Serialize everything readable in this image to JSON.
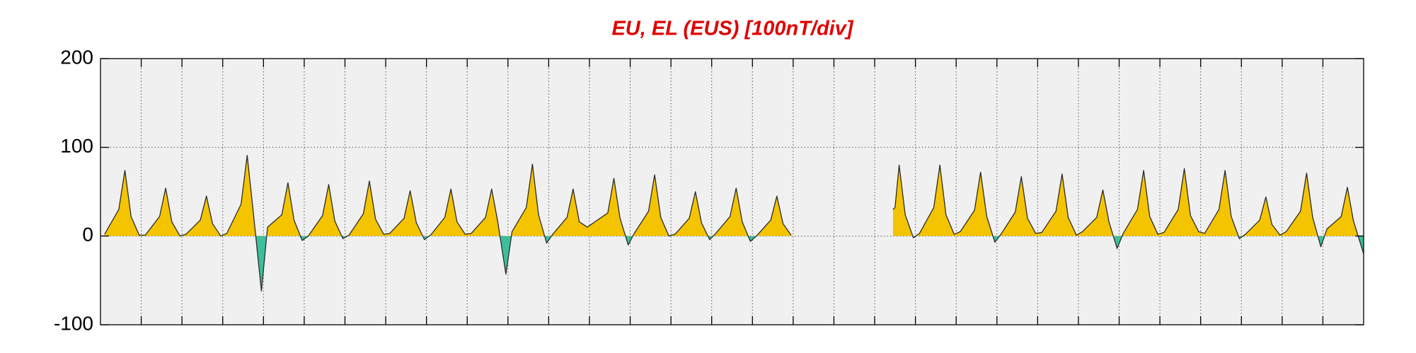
{
  "chart_data": {
    "type": "area",
    "title": "EU, EL (EUS)  [100nT/div]",
    "xlim": [
      0,
      31
    ],
    "xticks": [
      1,
      2,
      3,
      4,
      5,
      6,
      7,
      8,
      9,
      10,
      11,
      12,
      13,
      14,
      15,
      16,
      17,
      18,
      19,
      20,
      21,
      22,
      23,
      24,
      25,
      26,
      27,
      28,
      29,
      30
    ],
    "ylim": [
      -100,
      200
    ],
    "yticks": [
      -100,
      0,
      100,
      200
    ],
    "grid": true,
    "x": [
      0.1,
      0.45,
      0.6,
      0.75,
      0.95,
      1.1,
      1.45,
      1.6,
      1.75,
      1.95,
      2.1,
      2.45,
      2.6,
      2.75,
      2.95,
      3.1,
      3.45,
      3.6,
      3.75,
      3.95,
      4.1,
      4.45,
      4.6,
      4.75,
      4.95,
      5.1,
      5.45,
      5.6,
      5.75,
      5.95,
      6.1,
      6.45,
      6.6,
      6.75,
      6.95,
      7.1,
      7.45,
      7.6,
      7.75,
      7.95,
      8.1,
      8.45,
      8.6,
      8.75,
      8.95,
      9.1,
      9.45,
      9.6,
      9.75,
      9.95,
      10.1,
      10.45,
      10.6,
      10.75,
      10.95,
      11.1,
      11.45,
      11.6,
      11.75,
      11.95,
      12.1,
      12.45,
      12.6,
      12.75,
      12.95,
      13.1,
      13.45,
      13.6,
      13.75,
      13.95,
      14.1,
      14.45,
      14.6,
      14.75,
      14.95,
      15.1,
      15.45,
      15.6,
      15.75,
      15.95,
      16.1,
      16.45,
      16.6,
      16.75,
      16.95,
      17.5,
      19.45,
      19.5,
      19.6,
      19.75,
      19.95,
      20.1,
      20.45,
      20.6,
      20.75,
      20.95,
      21.1,
      21.45,
      21.6,
      21.75,
      21.95,
      22.1,
      22.45,
      22.6,
      22.75,
      22.95,
      23.1,
      23.45,
      23.6,
      23.75,
      23.95,
      24.1,
      24.45,
      24.6,
      24.75,
      24.95,
      25.1,
      25.45,
      25.6,
      25.75,
      25.95,
      26.1,
      26.45,
      26.6,
      26.75,
      26.95,
      27.1,
      27.45,
      27.6,
      27.75,
      27.95,
      28.1,
      28.45,
      28.6,
      28.75,
      28.95,
      29.1,
      29.45,
      29.6,
      29.75,
      29.95,
      30.1,
      30.45,
      30.6,
      30.75,
      31.0
    ],
    "series": [
      {
        "color": "#2b2b2b",
        "fill_above": "#f5c400",
        "fill_below": "#3dbf9c",
        "values": [
          2,
          30,
          74,
          22,
          1,
          1,
          22,
          54,
          16,
          0,
          2,
          18,
          45,
          14,
          0,
          3,
          36,
          91,
          27,
          -62,
          10,
          24,
          60,
          18,
          -5,
          0,
          23,
          58,
          17,
          -3,
          1,
          25,
          62,
          19,
          2,
          3,
          20,
          51,
          15,
          -4,
          1,
          21,
          53,
          16,
          2,
          3,
          21,
          53,
          16,
          -43,
          5,
          32,
          81,
          24,
          -8,
          2,
          21,
          53,
          16,
          10,
          15,
          26,
          65,
          20,
          -10,
          3,
          28,
          69,
          21,
          0,
          2,
          20,
          50,
          15,
          -4,
          3,
          22,
          54,
          16,
          -6,
          0,
          18,
          45,
          14,
          1,
          null,
          30,
          32,
          80,
          24,
          -2,
          3,
          32,
          80,
          24,
          2,
          5,
          29,
          72,
          22,
          -7,
          2,
          27,
          67,
          20,
          3,
          4,
          28,
          70,
          21,
          1,
          5,
          21,
          52,
          16,
          -14,
          3,
          30,
          74,
          22,
          2,
          4,
          30,
          76,
          23,
          5,
          3,
          30,
          74,
          22,
          -3,
          2,
          18,
          44,
          13,
          1,
          5,
          28,
          71,
          21,
          -12,
          8,
          22,
          55,
          17,
          -20
        ]
      }
    ]
  }
}
